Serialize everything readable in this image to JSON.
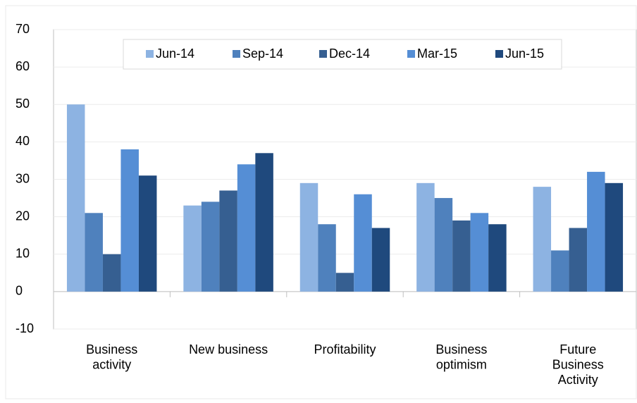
{
  "chart_data": {
    "type": "bar",
    "categories": [
      "Business\nactivity",
      "New business",
      "Profitability",
      "Business\noptimism",
      "Future\nBusiness\nActivity"
    ],
    "series": [
      {
        "name": "Jun-14",
        "color": "#8db3e2",
        "values": [
          50,
          23,
          29,
          29,
          28
        ]
      },
      {
        "name": "Sep-14",
        "color": "#4f81bd",
        "values": [
          21,
          24,
          18,
          25,
          11
        ]
      },
      {
        "name": "Dec-14",
        "color": "#365f91",
        "values": [
          10,
          27,
          5,
          19,
          17
        ]
      },
      {
        "name": "Mar-15",
        "color": "#558ed5",
        "values": [
          38,
          34,
          26,
          21,
          32
        ]
      },
      {
        "name": "Jun-15",
        "color": "#1f497d",
        "values": [
          31,
          37,
          17,
          18,
          29
        ]
      }
    ],
    "ylim": [
      -10,
      70
    ],
    "yticks": [
      -10,
      0,
      10,
      20,
      30,
      40,
      50,
      60,
      70
    ],
    "grid": true,
    "legend": "top"
  }
}
